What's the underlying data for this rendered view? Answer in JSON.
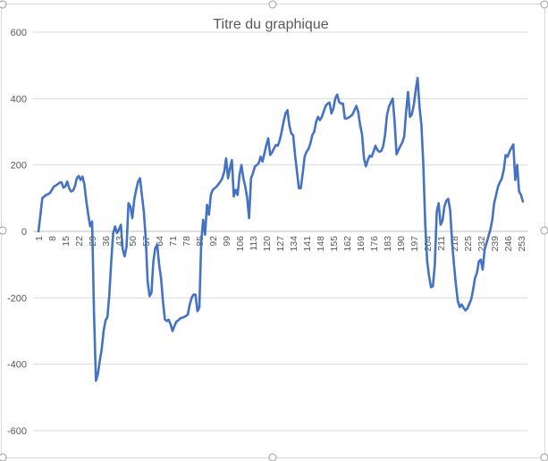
{
  "chart_data": {
    "type": "line",
    "title": "Titre du graphique",
    "categories": [
      1,
      null,
      null,
      null,
      null,
      null,
      null,
      8,
      null,
      null,
      null,
      null,
      null,
      null,
      15,
      null,
      null,
      null,
      null,
      null,
      null,
      22,
      null,
      null,
      null,
      null,
      null,
      null,
      29,
      null,
      null,
      null,
      null,
      null,
      null,
      36,
      null,
      null,
      null,
      null,
      null,
      null,
      43,
      null,
      null,
      null,
      null,
      null,
      null,
      50,
      null,
      null,
      null,
      null,
      null,
      null,
      57,
      null,
      null,
      null,
      null,
      null,
      null,
      64,
      null,
      null,
      null,
      null,
      null,
      null,
      71,
      null,
      null,
      null,
      null,
      null,
      null,
      78,
      null,
      null,
      null,
      null,
      null,
      null,
      85,
      null,
      null,
      null,
      null,
      null,
      null,
      92,
      null,
      null,
      null,
      null,
      null,
      null,
      99,
      null,
      null,
      null,
      null,
      null,
      null,
      106,
      null,
      null,
      null,
      null,
      null,
      null,
      113,
      null,
      null,
      null,
      null,
      null,
      null,
      120,
      null,
      null,
      null,
      null,
      null,
      null,
      127,
      null,
      null,
      null,
      null,
      null,
      null,
      134,
      null,
      null,
      null,
      null,
      null,
      null,
      141,
      null,
      null,
      null,
      null,
      null,
      null,
      148,
      null,
      null,
      null,
      null,
      null,
      null,
      155,
      null,
      null,
      null,
      null,
      null,
      null,
      162,
      null,
      null,
      null,
      null,
      null,
      null,
      169,
      null,
      null,
      null,
      null,
      null,
      null,
      176,
      null,
      null,
      null,
      null,
      null,
      null,
      183,
      null,
      null,
      null,
      null,
      null,
      null,
      190,
      null,
      null,
      null,
      null,
      null,
      null,
      197,
      null,
      null,
      null,
      null,
      null,
      null,
      204,
      null,
      null,
      null,
      null,
      null,
      null,
      211,
      null,
      null,
      null,
      null,
      null,
      null,
      218,
      null,
      null,
      null,
      null,
      null,
      null,
      225,
      null,
      null,
      null,
      null,
      null,
      null,
      232,
      null,
      null,
      null,
      null,
      null,
      null,
      239,
      null,
      null,
      null,
      null,
      null,
      null,
      246,
      null,
      null,
      null,
      null,
      null,
      null,
      253,
      null
    ],
    "series": [
      {
        "color": "#4472c4",
        "values": [
          0,
          50,
          100,
          105,
          110,
          112,
          116,
          125,
          135,
          138,
          142,
          147,
          148,
          132,
          135,
          150,
          130,
          120,
          123,
          135,
          160,
          167,
          155,
          165,
          140,
          90,
          50,
          15,
          30,
          -250,
          -450,
          -430,
          -390,
          -355,
          -300,
          -268,
          -258,
          -190,
          -90,
          -5,
          15,
          -5,
          5,
          20,
          -55,
          -75,
          -45,
          85,
          75,
          40,
          95,
          125,
          150,
          160,
          110,
          60,
          -20,
          -150,
          -195,
          -185,
          -90,
          -50,
          -40,
          -100,
          -140,
          -210,
          -265,
          -270,
          -266,
          -280,
          -300,
          -285,
          -272,
          -268,
          -262,
          -260,
          -258,
          -255,
          -250,
          -220,
          -200,
          -190,
          -190,
          -240,
          -230,
          -30,
          35,
          -10,
          80,
          50,
          110,
          125,
          130,
          135,
          142,
          150,
          160,
          180,
          220,
          160,
          190,
          215,
          105,
          125,
          110,
          170,
          200,
          160,
          135,
          100,
          40,
          160,
          175,
          195,
          200,
          205,
          225,
          210,
          235,
          260,
          280,
          230,
          238,
          250,
          260,
          258,
          275,
          300,
          330,
          355,
          365,
          320,
          295,
          290,
          230,
          180,
          130,
          130,
          175,
          225,
          240,
          248,
          265,
          290,
          300,
          330,
          345,
          335,
          345,
          362,
          378,
          385,
          388,
          355,
          370,
          400,
          412,
          390,
          385,
          385,
          340,
          340,
          343,
          347,
          352,
          365,
          378,
          360,
          320,
          292,
          220,
          196,
          215,
          228,
          225,
          240,
          258,
          245,
          240,
          242,
          256,
          290,
          350,
          375,
          388,
          400,
          330,
          232,
          245,
          257,
          268,
          285,
          360,
          420,
          345,
          352,
          380,
          425,
          462,
          375,
          320,
          200,
          20,
          -90,
          -135,
          -168,
          -165,
          -100,
          60,
          85,
          20,
          32,
          75,
          92,
          98,
          65,
          -30,
          -100,
          -160,
          -210,
          -228,
          -220,
          -230,
          -238,
          -232,
          -218,
          -205,
          -175,
          -140,
          -125,
          -90,
          -85,
          -115,
          -55,
          -35,
          -15,
          5,
          35,
          85,
          110,
          135,
          148,
          160,
          185,
          230,
          225,
          240,
          252,
          262,
          155,
          200,
          120,
          110,
          90
        ]
      }
    ],
    "ylim": [
      -600,
      600
    ],
    "yticks": [
      -600,
      -400,
      -200,
      0,
      200,
      400,
      600
    ],
    "grid": true
  }
}
